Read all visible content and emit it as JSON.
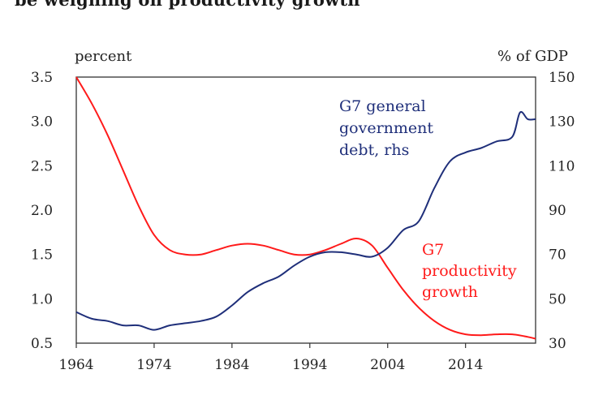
{
  "title_fragment": "be weighing on productivity growth",
  "chart_data": {
    "type": "line",
    "left_unit": "percent",
    "right_unit": "% of GDP",
    "x_ticks": [
      "1964",
      "1974",
      "1984",
      "1994",
      "2004",
      "2014"
    ],
    "y_left_ticks": [
      "3.5",
      "3.0",
      "2.5",
      "2.0",
      "1.5",
      "1.0",
      "0.5"
    ],
    "y_right_ticks": [
      "150",
      "130",
      "110",
      "90",
      "70",
      "50",
      "30"
    ],
    "xlim": [
      1964,
      2023
    ],
    "ylim_left": [
      0.5,
      3.5
    ],
    "ylim_right": [
      30,
      150
    ],
    "series": [
      {
        "label_lines": [
          "G7",
          "productivity",
          "growth"
        ],
        "axis": "left",
        "color": "#ff1a1a",
        "x": [
          1964,
          1966,
          1968,
          1970,
          1972,
          1974,
          1976,
          1978,
          1980,
          1982,
          1984,
          1986,
          1988,
          1990,
          1992,
          1994,
          1996,
          1998,
          2000,
          2002,
          2004,
          2006,
          2008,
          2010,
          2012,
          2014,
          2016,
          2018,
          2020,
          2022,
          2023
        ],
        "y": [
          3.5,
          3.2,
          2.85,
          2.45,
          2.05,
          1.72,
          1.55,
          1.5,
          1.5,
          1.55,
          1.6,
          1.62,
          1.6,
          1.55,
          1.5,
          1.5,
          1.55,
          1.62,
          1.68,
          1.6,
          1.35,
          1.1,
          0.9,
          0.75,
          0.65,
          0.6,
          0.59,
          0.6,
          0.6,
          0.57,
          0.55
        ]
      },
      {
        "label_lines": [
          "G7 general",
          "government",
          "debt, rhs"
        ],
        "axis": "right",
        "color": "#1f2f7a",
        "x": [
          1964,
          1966,
          1968,
          1970,
          1972,
          1974,
          1976,
          1978,
          1980,
          1982,
          1984,
          1986,
          1988,
          1990,
          1992,
          1994,
          1996,
          1998,
          2000,
          2002,
          2004,
          2006,
          2008,
          2010,
          2012,
          2014,
          2016,
          2018,
          2020,
          2021,
          2022,
          2023
        ],
        "y": [
          44,
          41,
          40,
          38,
          38,
          36,
          38,
          39,
          40,
          42,
          47,
          53,
          57,
          60,
          65,
          69,
          71,
          71,
          70,
          69,
          73,
          81,
          85,
          100,
          112,
          116,
          118,
          121,
          123,
          134,
          131,
          131
        ]
      }
    ]
  }
}
